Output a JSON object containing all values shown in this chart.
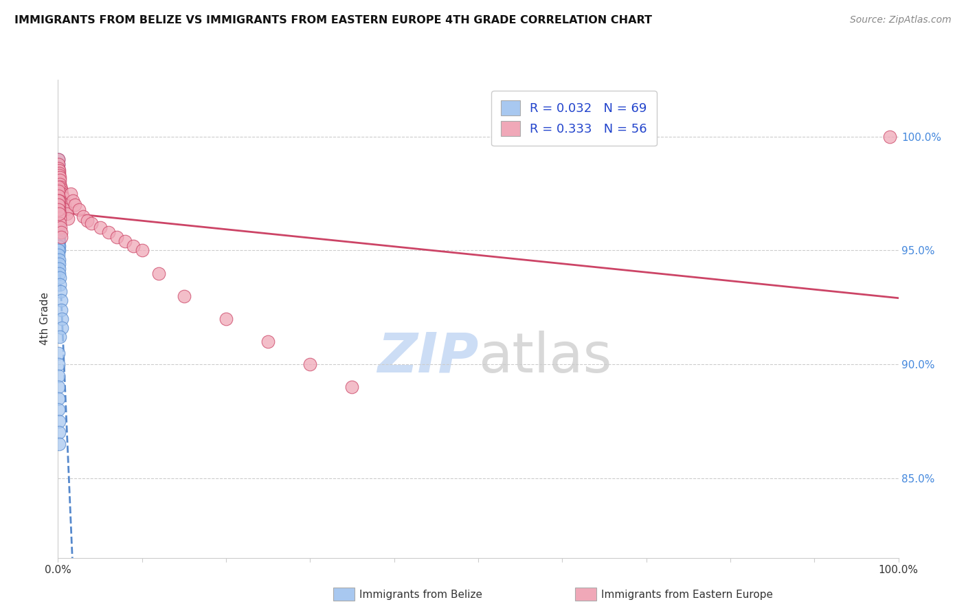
{
  "title": "IMMIGRANTS FROM BELIZE VS IMMIGRANTS FROM EASTERN EUROPE 4TH GRADE CORRELATION CHART",
  "source": "Source: ZipAtlas.com",
  "ylabel": "4th Grade",
  "legend_belize": "Immigrants from Belize",
  "legend_eastern": "Immigrants from Eastern Europe",
  "r_belize": "0.032",
  "n_belize": "69",
  "r_eastern": "0.333",
  "n_eastern": "56",
  "color_belize": "#a8c8f0",
  "color_eastern": "#f0a8b8",
  "line_color_belize": "#5588cc",
  "line_color_eastern": "#cc4466",
  "right_yticks": [
    0.85,
    0.9,
    0.95,
    1.0
  ],
  "right_ytick_labels": [
    "85.0%",
    "90.0%",
    "95.0%",
    "100.0%"
  ],
  "xmin": 0.0,
  "xmax": 1.0,
  "ymin": 0.815,
  "ymax": 1.025,
  "belize_x": [
    0.0002,
    0.0003,
    0.0004,
    0.0005,
    0.0006,
    0.0007,
    0.0008,
    0.0008,
    0.0009,
    0.001,
    0.001,
    0.0011,
    0.0012,
    0.0013,
    0.0014,
    0.0015,
    0.0016,
    0.0017,
    0.0018,
    0.0019,
    0.002,
    0.0021,
    0.0022,
    0.0003,
    0.0004,
    0.0005,
    0.0006,
    0.0007,
    0.0008,
    0.0009,
    0.001,
    0.0011,
    0.0012,
    0.0013,
    0.0003,
    0.0004,
    0.0005,
    0.0006,
    0.0007,
    0.0008,
    0.0002,
    0.0003,
    0.0004,
    0.0005,
    0.0006,
    0.0007,
    0.0008,
    0.0009,
    0.001,
    0.0011,
    0.0012,
    0.0013,
    0.002,
    0.0025,
    0.003,
    0.0035,
    0.004,
    0.0045,
    0.005,
    0.002,
    0.0004,
    0.0005,
    0.0006,
    0.0007,
    0.0008,
    0.0009,
    0.001,
    0.0011,
    0.0012
  ],
  "belize_y": [
    0.99,
    0.988,
    0.986,
    0.985,
    0.984,
    0.983,
    0.982,
    0.981,
    0.98,
    0.979,
    0.978,
    0.977,
    0.976,
    0.975,
    0.974,
    0.973,
    0.972,
    0.971,
    0.97,
    0.969,
    0.968,
    0.967,
    0.966,
    0.975,
    0.972,
    0.969,
    0.966,
    0.963,
    0.96,
    0.958,
    0.956,
    0.954,
    0.952,
    0.95,
    0.978,
    0.976,
    0.974,
    0.972,
    0.97,
    0.968,
    0.962,
    0.96,
    0.958,
    0.956,
    0.954,
    0.952,
    0.95,
    0.948,
    0.946,
    0.944,
    0.942,
    0.94,
    0.938,
    0.935,
    0.932,
    0.928,
    0.924,
    0.92,
    0.916,
    0.912,
    0.905,
    0.9,
    0.895,
    0.89,
    0.885,
    0.88,
    0.875,
    0.87,
    0.865
  ],
  "eastern_x": [
    0.0003,
    0.0005,
    0.0008,
    0.001,
    0.0012,
    0.0015,
    0.0018,
    0.002,
    0.0025,
    0.003,
    0.0035,
    0.004,
    0.0045,
    0.005,
    0.006,
    0.007,
    0.008,
    0.009,
    0.01,
    0.012,
    0.0003,
    0.0005,
    0.0008,
    0.001,
    0.0012,
    0.0015,
    0.0018,
    0.002,
    0.0025,
    0.003,
    0.0035,
    0.004,
    0.0003,
    0.0005,
    0.0008,
    0.001,
    0.015,
    0.018,
    0.02,
    0.025,
    0.03,
    0.035,
    0.04,
    0.05,
    0.06,
    0.07,
    0.08,
    0.09,
    0.1,
    0.12,
    0.15,
    0.2,
    0.25,
    0.3,
    0.35,
    0.99
  ],
  "eastern_y": [
    0.99,
    0.988,
    0.986,
    0.985,
    0.984,
    0.983,
    0.982,
    0.981,
    0.979,
    0.978,
    0.977,
    0.976,
    0.975,
    0.974,
    0.973,
    0.971,
    0.97,
    0.968,
    0.966,
    0.964,
    0.978,
    0.976,
    0.974,
    0.972,
    0.97,
    0.968,
    0.966,
    0.964,
    0.962,
    0.96,
    0.958,
    0.956,
    0.972,
    0.97,
    0.968,
    0.966,
    0.975,
    0.972,
    0.97,
    0.968,
    0.965,
    0.963,
    0.962,
    0.96,
    0.958,
    0.956,
    0.954,
    0.952,
    0.95,
    0.94,
    0.93,
    0.92,
    0.91,
    0.9,
    0.89,
    1.0
  ]
}
